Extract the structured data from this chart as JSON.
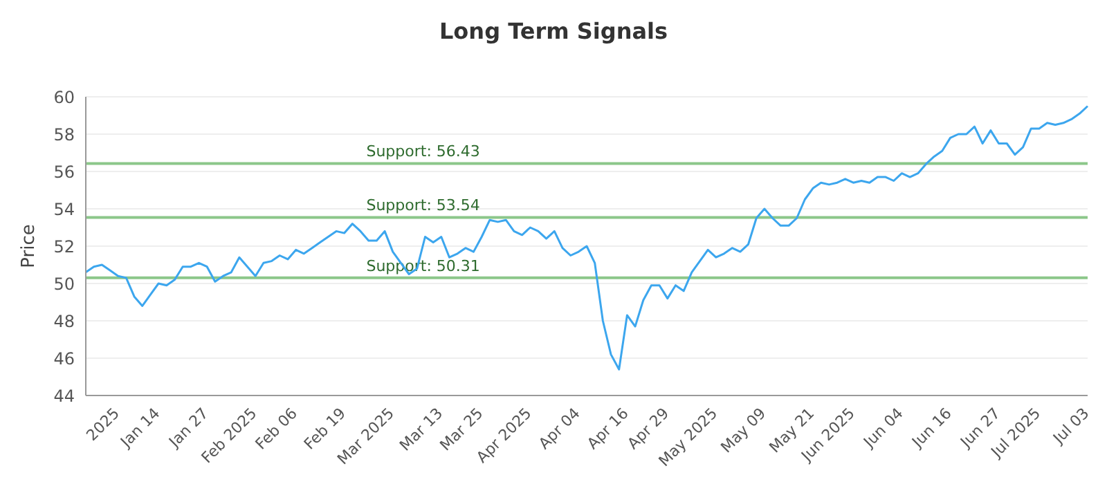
{
  "chart_data": {
    "type": "line",
    "title": "Long Term Signals",
    "ylabel": "Price",
    "categories": [
      null,
      null,
      null,
      null,
      "2025",
      null,
      null,
      null,
      null,
      "Jan 14",
      null,
      null,
      null,
      null,
      null,
      "Jan 27",
      null,
      null,
      null,
      null,
      null,
      "Feb 2025",
      null,
      null,
      null,
      null,
      "Feb 06",
      null,
      null,
      null,
      null,
      null,
      "Feb 19",
      null,
      null,
      null,
      null,
      null,
      "Mar 2025",
      null,
      null,
      null,
      null,
      null,
      "Mar 13",
      null,
      null,
      null,
      null,
      "Mar 25",
      null,
      null,
      null,
      null,
      null,
      "Apr 2025",
      null,
      null,
      null,
      null,
      null,
      "Apr 04",
      null,
      null,
      null,
      null,
      null,
      "Apr 16",
      null,
      null,
      null,
      null,
      "Apr 29",
      null,
      null,
      null,
      null,
      null,
      "May 2025",
      null,
      null,
      null,
      null,
      null,
      "May 09",
      null,
      null,
      null,
      null,
      null,
      "May 21",
      null,
      null,
      null,
      null,
      "Jun 2025",
      null,
      null,
      null,
      null,
      null,
      "Jun 04",
      null,
      null,
      null,
      null,
      null,
      "Jun 16",
      null,
      null,
      null,
      null,
      null,
      "Jun 27",
      null,
      null,
      null,
      null,
      "Jul 2025",
      null,
      null,
      null,
      null,
      null,
      "Jul 03"
    ],
    "series": [
      {
        "color": "#3ca6ee",
        "values": [
          50.6,
          50.9,
          51.0,
          50.7,
          50.4,
          50.3,
          49.3,
          48.8,
          49.4,
          50.0,
          49.9,
          50.2,
          50.9,
          50.9,
          51.1,
          50.9,
          50.1,
          50.4,
          50.6,
          51.4,
          50.9,
          50.4,
          51.1,
          51.2,
          51.5,
          51.3,
          51.8,
          51.6,
          51.9,
          52.2,
          52.5,
          52.8,
          52.7,
          53.2,
          52.8,
          52.3,
          52.3,
          52.8,
          51.7,
          51.1,
          50.5,
          50.8,
          52.5,
          52.2,
          52.5,
          51.4,
          51.6,
          51.9,
          51.7,
          52.5,
          53.4,
          53.3,
          53.4,
          52.8,
          52.6,
          53.0,
          52.8,
          52.4,
          52.8,
          51.9,
          51.5,
          51.7,
          52.0,
          51.1,
          48.0,
          46.2,
          45.4,
          48.3,
          47.7,
          49.1,
          49.9,
          49.9,
          49.2,
          49.9,
          49.6,
          50.6,
          51.2,
          51.8,
          51.4,
          51.6,
          51.9,
          51.7,
          52.1,
          53.5,
          54.0,
          53.5,
          53.1,
          53.1,
          53.5,
          54.5,
          55.1,
          55.4,
          55.3,
          55.4,
          55.6,
          55.4,
          55.5,
          55.4,
          55.7,
          55.7,
          55.5,
          55.9,
          55.7,
          55.9,
          56.4,
          56.8,
          57.1,
          57.8,
          58.0,
          58.0,
          58.4,
          57.5,
          58.2,
          57.5,
          57.5,
          56.9,
          57.3,
          58.3,
          58.3,
          58.6,
          58.5,
          58.6,
          58.8,
          59.1,
          59.5
        ]
      }
    ],
    "ylim": [
      44,
      60
    ],
    "yticks": [
      44,
      46,
      48,
      50,
      52,
      54,
      56,
      58,
      60
    ],
    "grid": "y",
    "marker": "none",
    "line_style": "solid",
    "ref_lines": [
      {
        "axis": "y",
        "value": 56.43,
        "label": "Support: 56.43",
        "color": "#8cc78a"
      },
      {
        "axis": "y",
        "value": 53.54,
        "label": "Support: 53.54",
        "color": "#8cc78a"
      },
      {
        "axis": "y",
        "value": 50.31,
        "label": "Support: 50.31",
        "color": "#8cc78a"
      }
    ]
  }
}
